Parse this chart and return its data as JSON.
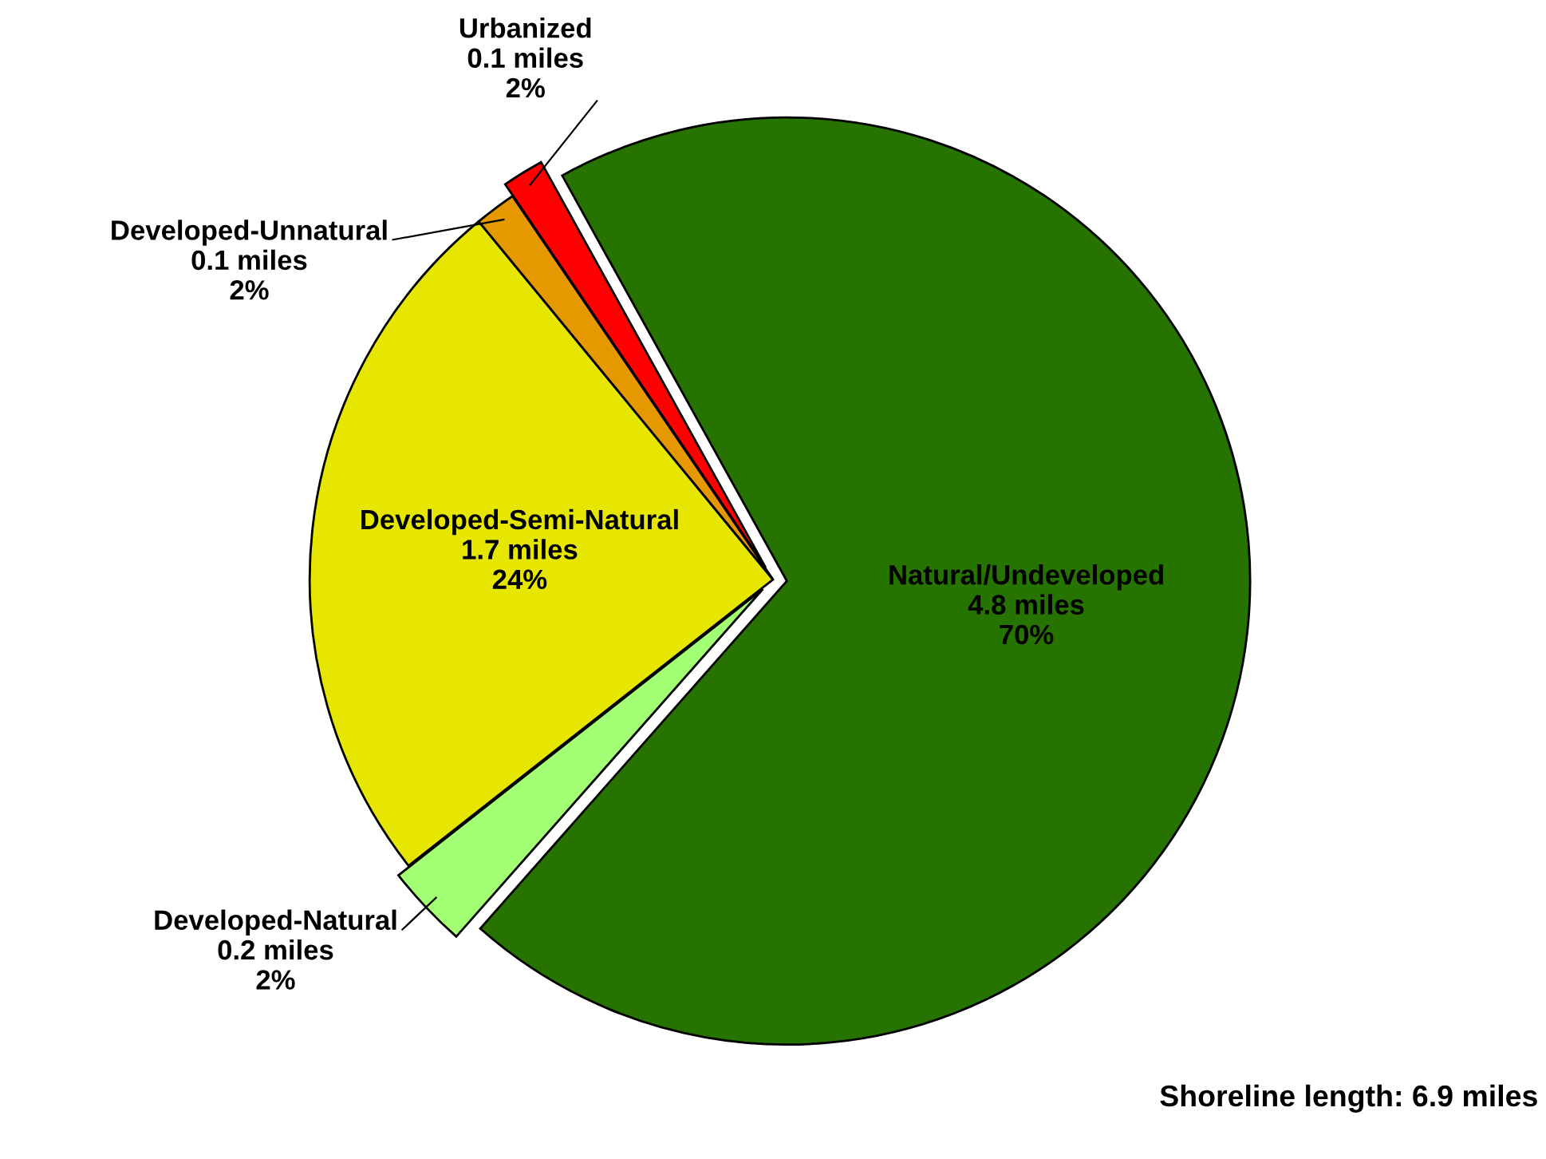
{
  "chart_data": {
    "type": "pie",
    "categories": [
      "Natural/Undeveloped",
      "Developed-Natural",
      "Developed-Semi-Natural",
      "Developed-Unnatural",
      "Urbanized"
    ],
    "values": [
      4.8,
      0.2,
      1.7,
      0.1,
      0.1
    ],
    "value_labels": [
      "4.8 miles\n70%",
      "0.2 miles\n2%",
      "1.7 miles\n24%",
      "0.1 miles\n2%",
      "0.1 miles\n2%"
    ],
    "colors": [
      "#267300",
      "#a3ff73",
      "#e6e600",
      "#e69800",
      "#ff0000"
    ],
    "annotations": [
      "Shoreline length: 6.9 miles"
    ],
    "legend": false
  }
}
